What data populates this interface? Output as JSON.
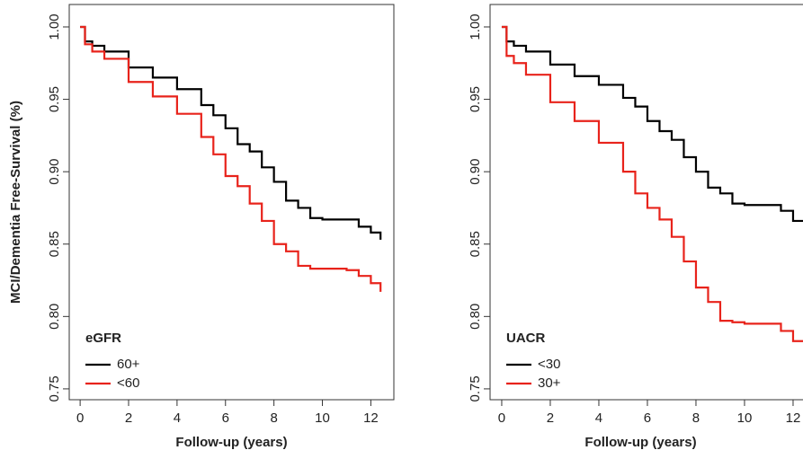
{
  "chart_data": [
    {
      "type": "step",
      "ylabel": "MCI/Dementia Free-Survival (%)",
      "xlabel": "Follow-up (years)",
      "legend_title": "eGFR",
      "legend": "bottom-left",
      "xlim": [
        -0.45,
        12.95
      ],
      "ylim": [
        0.7425,
        1.0155
      ],
      "xticks": [
        0,
        2,
        4,
        6,
        8,
        10,
        12
      ],
      "yticks": [
        0.75,
        {
          "value": 0.8,
          "label": "0.80"
        },
        0.85,
        {
          "value": 0.9,
          "label": "0.90"
        },
        0.95,
        {
          "value": 1,
          "label": "1.00"
        }
      ],
      "x": [
        0,
        0.2,
        0.5,
        1,
        2,
        3,
        4,
        5,
        5.5,
        6,
        6.5,
        7,
        7.5,
        8,
        8.5,
        9,
        9.5,
        10,
        11,
        11.5,
        12,
        12.4
      ],
      "series": [
        {
          "name": "60+",
          "color": "#000000",
          "values": [
            1.0,
            0.99,
            0.987,
            0.983,
            0.972,
            0.965,
            0.957,
            0.946,
            0.939,
            0.93,
            0.919,
            0.914,
            0.903,
            0.893,
            0.88,
            0.875,
            0.868,
            0.867,
            0.867,
            0.862,
            0.858,
            0.853
          ]
        },
        {
          "name": "<60",
          "color": "#e8231b",
          "values": [
            1.0,
            0.988,
            0.983,
            0.978,
            0.962,
            0.952,
            0.94,
            0.924,
            0.912,
            0.897,
            0.89,
            0.878,
            0.866,
            0.85,
            0.845,
            0.835,
            0.833,
            0.833,
            0.832,
            0.828,
            0.823,
            0.817
          ]
        }
      ]
    },
    {
      "type": "step",
      "xlabel": "Follow-up (years)",
      "legend_title": "UACR",
      "legend": "bottom-left",
      "xlim": [
        -0.48,
        12.89
      ],
      "ylim": [
        0.7425,
        1.0155
      ],
      "xticks": [
        0,
        2,
        4,
        6,
        8,
        10,
        12
      ],
      "yticks": [
        0.75,
        {
          "value": 0.8,
          "label": "0.80"
        },
        0.85,
        {
          "value": 0.9,
          "label": "0.90"
        },
        0.95,
        {
          "value": 1,
          "label": "1.00"
        }
      ],
      "x": [
        0,
        0.2,
        0.5,
        1,
        2,
        3,
        4,
        5,
        5.5,
        6,
        6.5,
        7,
        7.5,
        8,
        8.5,
        9,
        9.5,
        10,
        11,
        11.5,
        12,
        12.5
      ],
      "series": [
        {
          "name": "<30",
          "color": "#000000",
          "values": [
            1.0,
            0.99,
            0.987,
            0.983,
            0.974,
            0.966,
            0.96,
            0.951,
            0.945,
            0.935,
            0.928,
            0.922,
            0.91,
            0.9,
            0.889,
            0.885,
            0.878,
            0.877,
            0.877,
            0.873,
            0.866,
            0.86
          ]
        },
        {
          "name": "30+",
          "color": "#e8231b",
          "values": [
            1.0,
            0.98,
            0.975,
            0.967,
            0.948,
            0.935,
            0.92,
            0.9,
            0.885,
            0.875,
            0.867,
            0.855,
            0.838,
            0.82,
            0.81,
            0.797,
            0.796,
            0.795,
            0.795,
            0.79,
            0.783,
            0.776
          ]
        }
      ]
    }
  ]
}
